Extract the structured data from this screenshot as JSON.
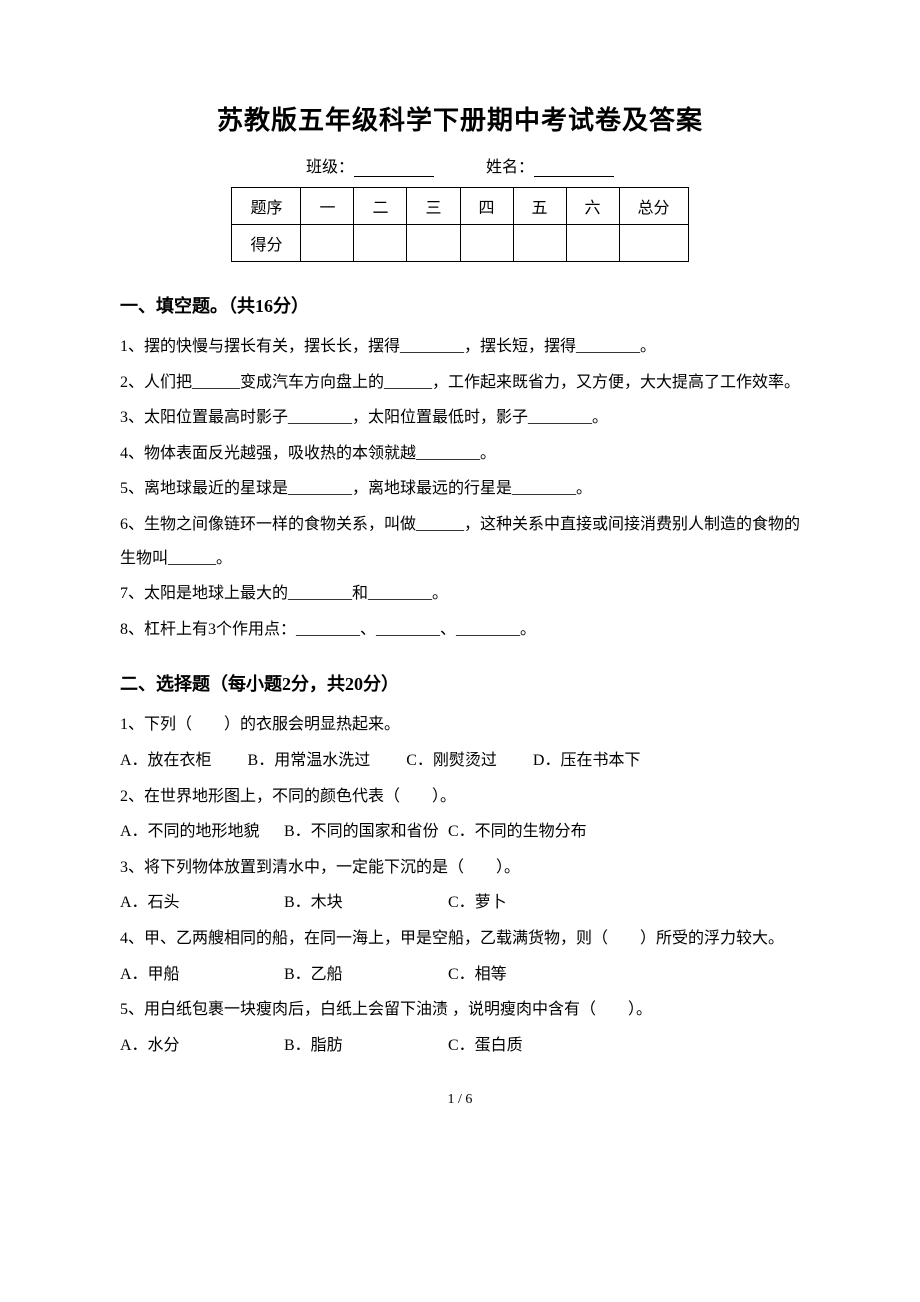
{
  "title": "苏教版五年级科学下册期中考试卷及答案",
  "info": {
    "class_label": "班级：",
    "name_label": "姓名："
  },
  "score_table": {
    "header": [
      "题序",
      "一",
      "二",
      "三",
      "四",
      "五",
      "六",
      "总分"
    ],
    "row_label": "得分"
  },
  "section1": {
    "header": "一、填空题。（共16分）",
    "q1": "1、摆的快慢与摆长有关，摆长长，摆得________，摆长短，摆得________。",
    "q2": "2、人们把______变成汽车方向盘上的______，工作起来既省力，又方便，大大提高了工作效率。",
    "q3": "3、太阳位置最高时影子________，太阳位置最低时，影子________。",
    "q4": "4、物体表面反光越强，吸收热的本领就越________。",
    "q5": "5、离地球最近的星球是________，离地球最远的行星是________。",
    "q6": "6、生物之间像链环一样的食物关系，叫做______，这种关系中直接或间接消费别人制造的食物的生物叫______。",
    "q7": "7、太阳是地球上最大的________和________。",
    "q8": "8、杠杆上有3个作用点：________、________、________。"
  },
  "section2": {
    "header": "二、选择题（每小题2分，共20分）",
    "q1": {
      "text": "1、下列（　　）的衣服会明显热起来。",
      "opts": "A．放在衣柜　　 B．用常温水洗过　　 C．刚熨烫过　　 D．压在书本下"
    },
    "q2": {
      "text": "2、在世界地形图上，不同的颜色代表（　　）。",
      "a": "A．不同的地形地貌",
      "b": "B．不同的国家和省份",
      "c": "C．不同的生物分布"
    },
    "q3": {
      "text": "3、将下列物体放置到清水中，一定能下沉的是（　　）。",
      "a": "A．石头",
      "b": "B．木块",
      "c": "C．萝卜"
    },
    "q4": {
      "text": "4、甲、乙两艘相同的船，在同一海上，甲是空船，乙载满货物，则（　　）所受的浮力较大。",
      "a": "A．甲船",
      "b": "B．乙船",
      "c": "C．相等"
    },
    "q5": {
      "text": "5、用白纸包裹一块瘦肉后，白纸上会留下油渍 ，说明瘦肉中含有（　　）。",
      "a": "A．水分",
      "b": "B．脂肪",
      "c": "C．蛋白质"
    }
  },
  "page_num": "1 / 6",
  "colors": {
    "text": "#000000",
    "background": "#ffffff",
    "border": "#000000"
  },
  "fonts": {
    "title_size": 26,
    "section_size": 18,
    "body_size": 16,
    "page_num_size": 14,
    "family": "SimSun"
  }
}
